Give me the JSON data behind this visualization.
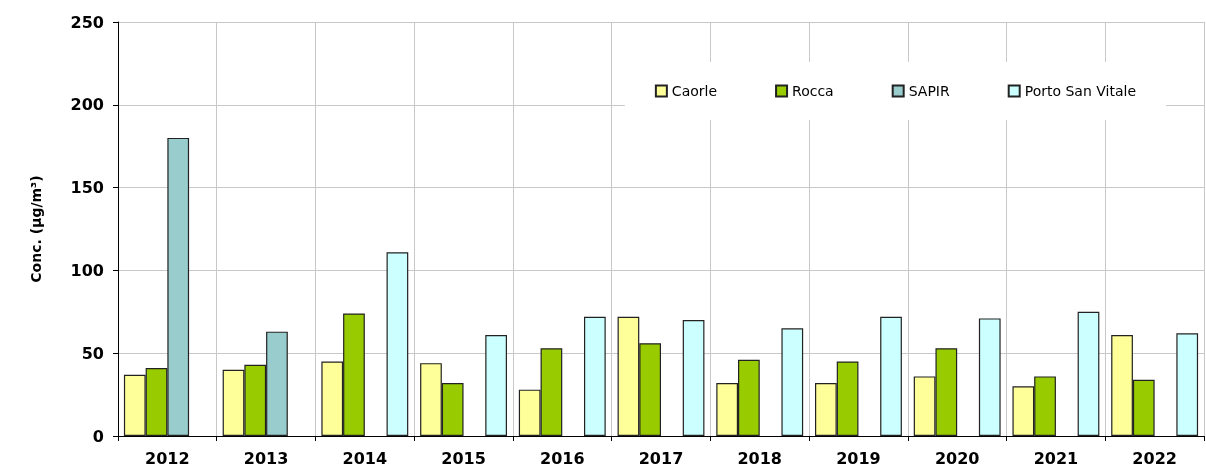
{
  "chart_data": {
    "type": "bar",
    "ylabel": "Conc. (µg/m³)",
    "categories": [
      "2012",
      "2013",
      "2014",
      "2015",
      "2016",
      "2017",
      "2018",
      "2019",
      "2020",
      "2021",
      "2022"
    ],
    "series": [
      {
        "name": "Caorle",
        "color": "#ffff99",
        "values": [
          37,
          40,
          45,
          44,
          28,
          72,
          32,
          32,
          36,
          30,
          61
        ]
      },
      {
        "name": "Rocca",
        "color": "#99cc00",
        "values": [
          41,
          43,
          74,
          32,
          53,
          56,
          46,
          45,
          53,
          36,
          34
        ]
      },
      {
        "name": "SAPIR",
        "color": "#99cccc",
        "values": [
          180,
          63,
          null,
          null,
          null,
          null,
          null,
          null,
          null,
          null,
          null
        ]
      },
      {
        "name": "Porto San Vitale",
        "color": "#ccffff",
        "values": [
          null,
          null,
          111,
          61,
          72,
          70,
          65,
          72,
          71,
          75,
          62
        ]
      }
    ],
    "ylim": [
      0,
      250
    ],
    "yticks": [
      0,
      50,
      100,
      150,
      200,
      250
    ],
    "grid": true,
    "legend": "top right"
  }
}
